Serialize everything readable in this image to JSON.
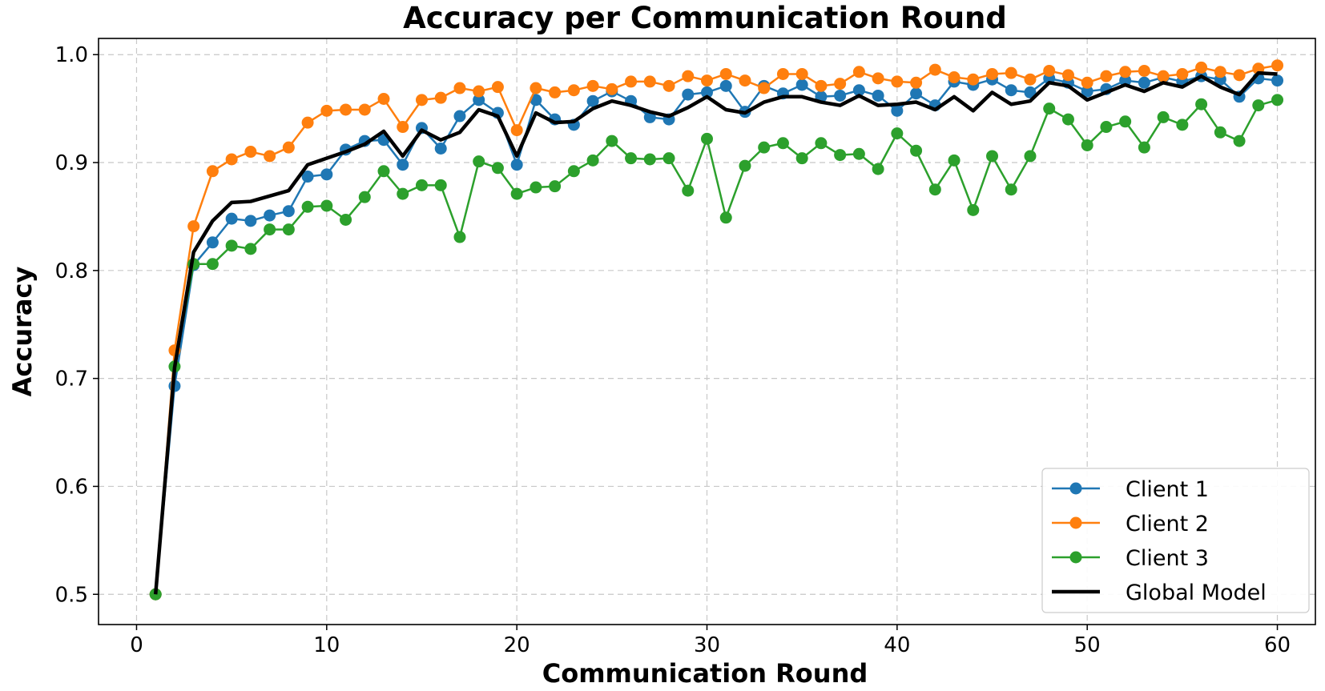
{
  "chart_data": {
    "type": "line",
    "title": "Accuracy per Communication Round",
    "xlabel": "Communication Round",
    "ylabel": "Accuracy",
    "xlim": [
      -2,
      62
    ],
    "ylim": [
      0.472,
      1.015
    ],
    "xticks": [
      0,
      10,
      20,
      30,
      40,
      50,
      60
    ],
    "yticks": [
      0.5,
      0.6,
      0.7,
      0.8,
      0.9,
      1.0
    ],
    "xtick_labels": [
      "0",
      "10",
      "20",
      "30",
      "40",
      "50",
      "60"
    ],
    "ytick_labels": [
      "0.5",
      "0.6",
      "0.7",
      "0.8",
      "0.9",
      "1.0"
    ],
    "grid": true,
    "legend_position": "bottom-right",
    "x": [
      1,
      2,
      3,
      4,
      5,
      6,
      7,
      8,
      9,
      10,
      11,
      12,
      13,
      14,
      15,
      16,
      17,
      18,
      19,
      20,
      21,
      22,
      23,
      24,
      25,
      26,
      27,
      28,
      29,
      30,
      31,
      32,
      33,
      34,
      35,
      36,
      37,
      38,
      39,
      40,
      41,
      42,
      43,
      44,
      45,
      46,
      47,
      48,
      49,
      50,
      51,
      52,
      53,
      54,
      55,
      56,
      57,
      58,
      59,
      60
    ],
    "series": [
      {
        "name": "Client 1",
        "color": "#1f77b4",
        "marker": true,
        "values": [
          0.5,
          0.693,
          0.805,
          0.826,
          0.848,
          0.846,
          0.851,
          0.855,
          0.887,
          0.889,
          0.912,
          0.92,
          0.921,
          0.898,
          0.932,
          0.913,
          0.943,
          0.958,
          0.946,
          0.898,
          0.958,
          0.94,
          0.935,
          0.957,
          0.966,
          0.957,
          0.942,
          0.94,
          0.963,
          0.965,
          0.971,
          0.947,
          0.971,
          0.964,
          0.972,
          0.961,
          0.962,
          0.967,
          0.962,
          0.948,
          0.964,
          0.953,
          0.975,
          0.972,
          0.977,
          0.967,
          0.965,
          0.978,
          0.974,
          0.966,
          0.968,
          0.976,
          0.974,
          0.979,
          0.975,
          0.98,
          0.977,
          0.961,
          0.978,
          0.976
        ]
      },
      {
        "name": "Client 2",
        "color": "#ff7f0e",
        "marker": true,
        "values": [
          0.5,
          0.726,
          0.841,
          0.892,
          0.903,
          0.91,
          0.906,
          0.914,
          0.937,
          0.948,
          0.949,
          0.949,
          0.959,
          0.933,
          0.958,
          0.96,
          0.969,
          0.966,
          0.97,
          0.93,
          0.969,
          0.965,
          0.967,
          0.971,
          0.968,
          0.975,
          0.975,
          0.971,
          0.98,
          0.976,
          0.982,
          0.976,
          0.969,
          0.982,
          0.982,
          0.971,
          0.973,
          0.984,
          0.978,
          0.975,
          0.974,
          0.986,
          0.979,
          0.977,
          0.982,
          0.983,
          0.977,
          0.985,
          0.981,
          0.974,
          0.98,
          0.984,
          0.985,
          0.98,
          0.982,
          0.988,
          0.984,
          0.981,
          0.987,
          0.99
        ]
      },
      {
        "name": "Client 3",
        "color": "#2ca02c",
        "marker": true,
        "values": [
          0.5,
          0.711,
          0.806,
          0.806,
          0.823,
          0.82,
          0.838,
          0.838,
          0.859,
          0.86,
          0.847,
          0.868,
          0.892,
          0.871,
          0.879,
          0.879,
          0.831,
          0.901,
          0.895,
          0.871,
          0.877,
          0.878,
          0.892,
          0.902,
          0.92,
          0.904,
          0.903,
          0.904,
          0.874,
          0.922,
          0.849,
          0.897,
          0.914,
          0.918,
          0.904,
          0.918,
          0.907,
          0.908,
          0.894,
          0.927,
          0.911,
          0.875,
          0.902,
          0.856,
          0.906,
          0.875,
          0.906,
          0.95,
          0.94,
          0.916,
          0.933,
          0.938,
          0.914,
          0.942,
          0.935,
          0.954,
          0.928,
          0.92,
          0.953,
          0.958
        ]
      },
      {
        "name": "Global Model",
        "color": "#000000",
        "marker": false,
        "values": [
          0.5,
          0.71,
          0.817,
          0.846,
          0.863,
          0.864,
          0.869,
          0.874,
          0.898,
          0.904,
          0.91,
          0.917,
          0.929,
          0.906,
          0.93,
          0.921,
          0.928,
          0.949,
          0.943,
          0.906,
          0.946,
          0.937,
          0.938,
          0.95,
          0.957,
          0.953,
          0.947,
          0.943,
          0.951,
          0.961,
          0.949,
          0.946,
          0.956,
          0.961,
          0.961,
          0.956,
          0.953,
          0.962,
          0.953,
          0.954,
          0.956,
          0.949,
          0.961,
          0.948,
          0.965,
          0.954,
          0.957,
          0.974,
          0.971,
          0.958,
          0.965,
          0.972,
          0.966,
          0.974,
          0.97,
          0.98,
          0.97,
          0.963,
          0.983,
          0.982
        ]
      }
    ]
  }
}
